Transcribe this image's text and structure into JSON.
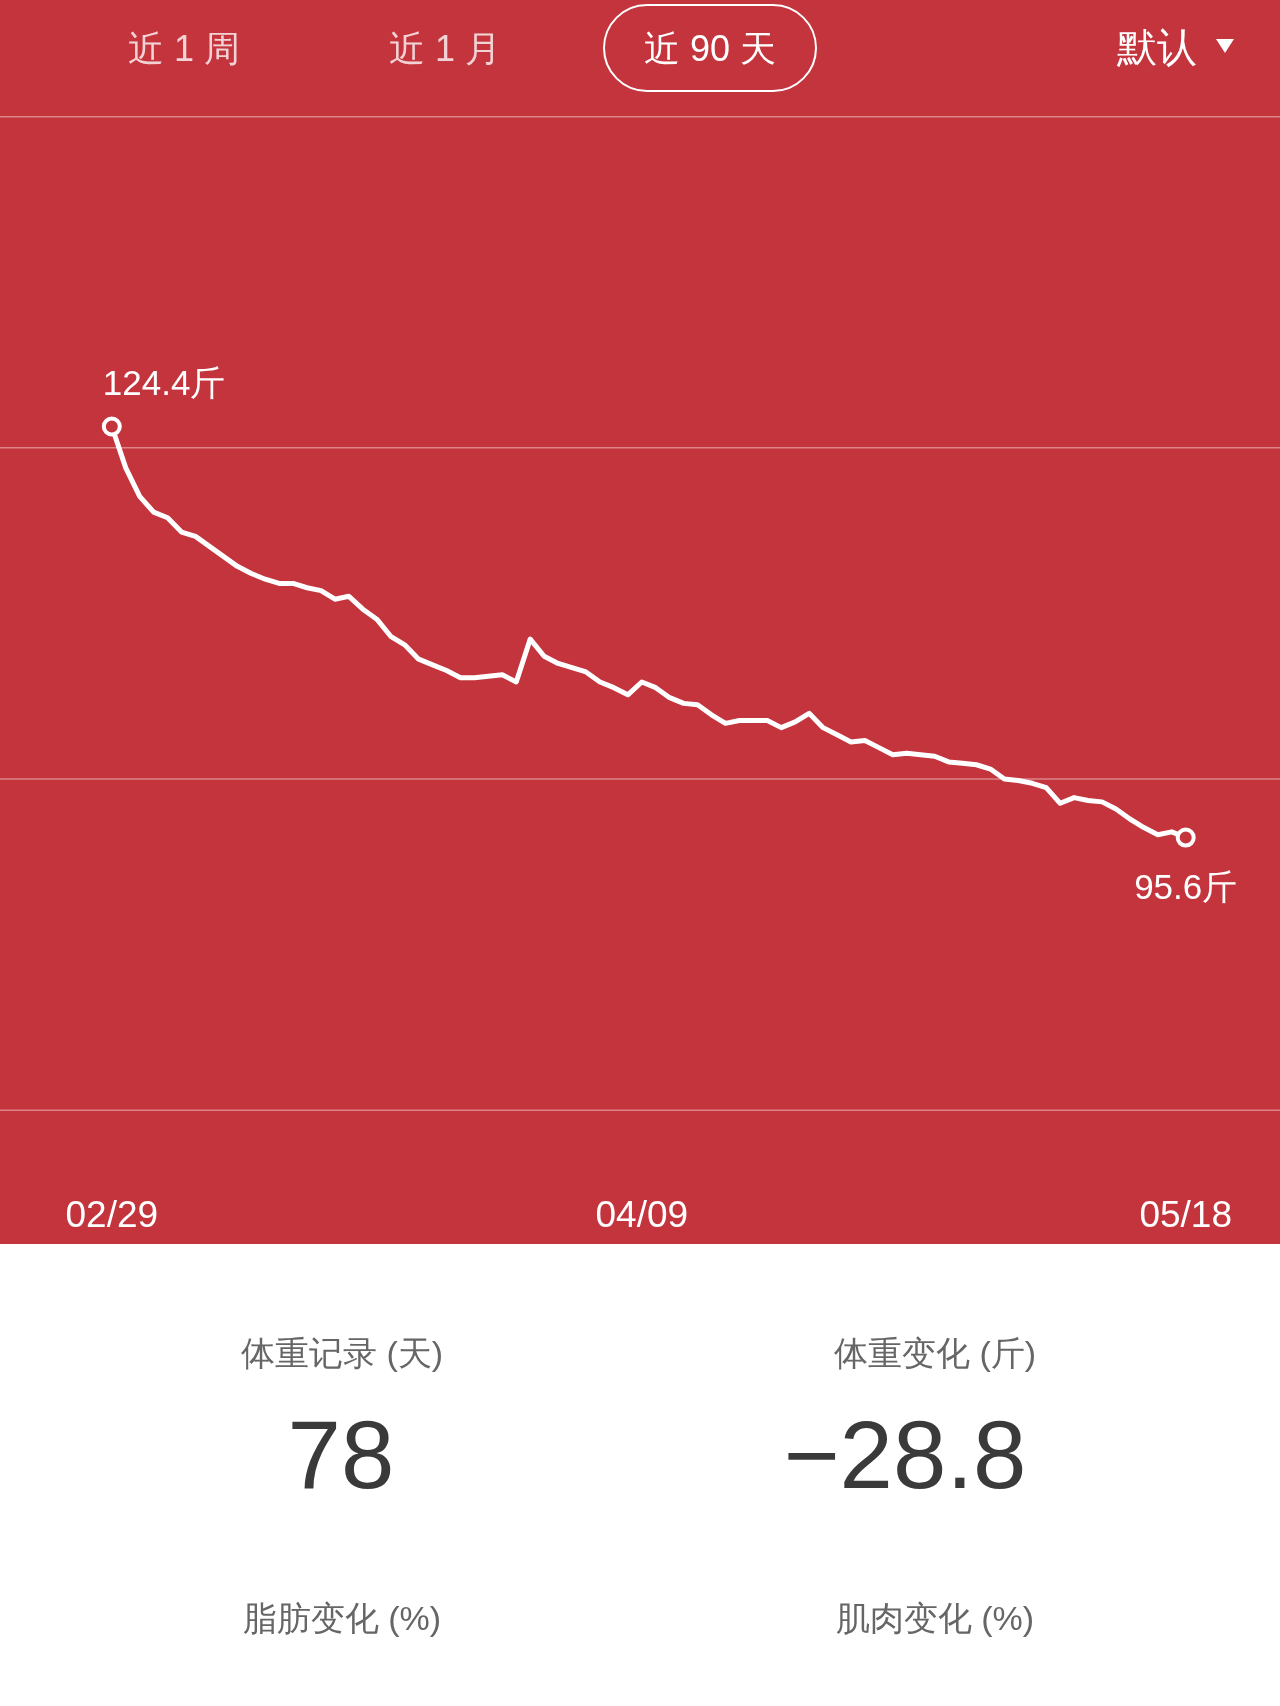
{
  "chart_data": [
    {
      "type": "line",
      "categories": [
        "02/29",
        null,
        null,
        null,
        null,
        null,
        null,
        null,
        null,
        null,
        null,
        null,
        null,
        null,
        null,
        null,
        null,
        null,
        null,
        null,
        null,
        null,
        null,
        null,
        null,
        null,
        null,
        null,
        null,
        null,
        null,
        null,
        null,
        null,
        null,
        null,
        null,
        null,
        "04/09",
        null,
        null,
        null,
        null,
        null,
        null,
        null,
        null,
        null,
        null,
        null,
        null,
        null,
        null,
        null,
        null,
        null,
        null,
        null,
        null,
        null,
        null,
        null,
        null,
        null,
        null,
        null,
        null,
        null,
        null,
        null,
        null,
        null,
        null,
        null,
        null,
        null,
        null,
        "05/18"
      ],
      "series": [
        {
          "type": "line",
          "color": "#ffffff",
          "values": [
            124.4,
            121.5,
            119.5,
            118.4,
            118.0,
            117.0,
            116.7,
            116.0,
            115.3,
            114.6,
            114.1,
            113.7,
            113.4,
            113.4,
            113.1,
            112.9,
            112.3,
            112.5,
            111.6,
            110.9,
            109.7,
            109.1,
            108.1,
            107.7,
            107.3,
            106.8,
            106.8,
            106.9,
            107.0,
            106.5,
            109.5,
            108.3,
            107.8,
            107.5,
            107.2,
            106.5,
            106.1,
            105.6,
            106.5,
            106.1,
            105.4,
            105.0,
            104.9,
            104.2,
            103.6,
            103.8,
            103.8,
            103.8,
            103.3,
            103.7,
            104.3,
            103.3,
            102.8,
            102.3,
            102.4,
            101.9,
            101.4,
            101.5,
            101.4,
            101.3,
            100.9,
            100.8,
            100.7,
            100.4,
            99.7,
            99.6,
            99.4,
            99.1,
            98.0,
            98.4,
            98.2,
            98.1,
            97.6,
            96.9,
            96.3,
            95.8,
            96.0,
            95.6
          ]
        },
        {
          "type": "scatter",
          "color": "#ffffff",
          "x": [
            "02/29",
            "05/18"
          ],
          "values": [
            124.4,
            95.6
          ],
          "value_labels": [
            "124.4斤",
            "95.6斤"
          ],
          "marker": "circle"
        }
      ],
      "ylim": [
        76.5,
        146.1
      ],
      "yticks": [
        {
          "value": 76.5,
          "label": null
        },
        {
          "value": 99.7,
          "label": null
        },
        {
          "value": 122.9,
          "label": null
        },
        {
          "value": 146.1,
          "label": null
        }
      ],
      "grid": "y",
      "tick_labels": "x",
      "annotations": [
        "近 1 周",
        "近 1 月",
        "近 90 天",
        "默认"
      ]
    },
    {
      "type": "other",
      "categories": [
        "体重记录 (天)",
        "体重变化 (斤)",
        "脂肪变化 (%)",
        "肌肉变化 (%)"
      ],
      "values": [
        78,
        -28.8,
        null,
        null
      ],
      "data_labels": true
    }
  ]
}
